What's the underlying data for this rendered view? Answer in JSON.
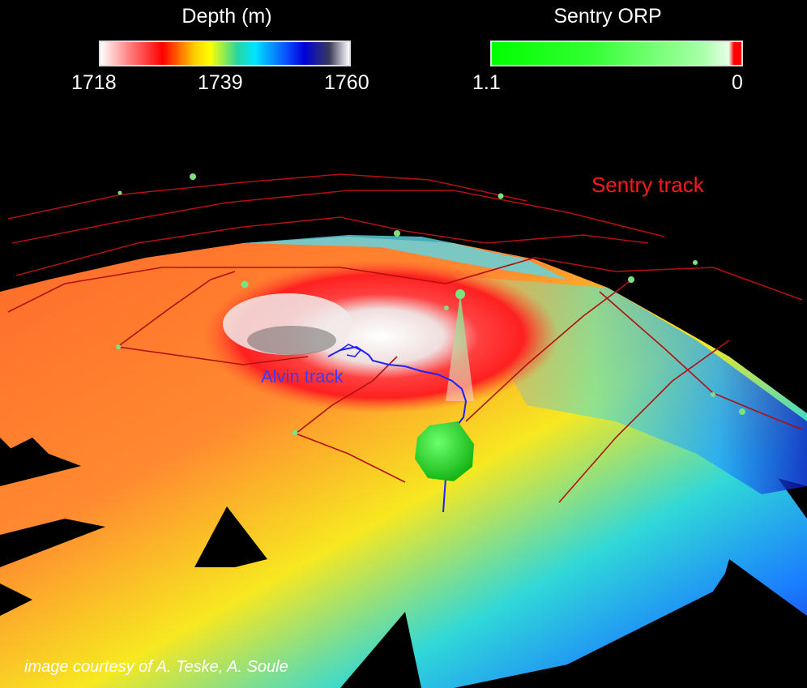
{
  "depth_legend": {
    "title": "Depth (m)",
    "ticks": [
      "1718",
      "1739",
      "1760"
    ]
  },
  "orp_legend": {
    "title": "Sentry ORP",
    "ticks": [
      "1.1",
      "0"
    ]
  },
  "labels": {
    "sentry_track": "Sentry track",
    "alvin_track": "Alvin track"
  },
  "credit": "image courtesy of A. Teske, A. Soule",
  "colors": {
    "background": "#000000",
    "sentry_track": "#b01010",
    "alvin_track": "#2020ff",
    "orp_marker": "#22ee22"
  }
}
